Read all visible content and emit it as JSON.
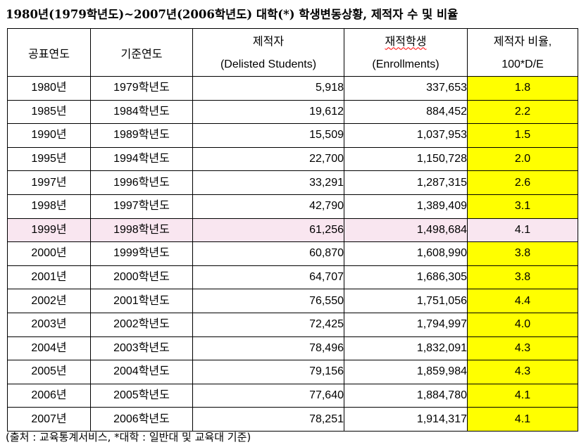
{
  "title": "1980년(1979학년도)~2007년(2006학년도) 대학(*) 학생변동상황, 제적자 수 및 비율",
  "headers": {
    "announce_year": "공표연도",
    "base_year": "기준연도",
    "delisted_ko": "제적자",
    "delisted_en": "(Delisted Students)",
    "enrolled_ko": "재적학생",
    "enrolled_en": "(Enrollments)",
    "ratio_ko": "제적자 비율,",
    "ratio_formula": "100*D/E"
  },
  "highlight_row_color": "#f9e6f0",
  "ratio_cell_color": "#ffff00",
  "rows": [
    {
      "year": "1980년",
      "base": "1979학년도",
      "delisted": "5,918",
      "enrolled": "337,653",
      "ratio": "1.8"
    },
    {
      "year": "1985년",
      "base": "1984학년도",
      "delisted": "19,612",
      "enrolled": "884,452",
      "ratio": "2.2"
    },
    {
      "year": "1990년",
      "base": "1989학년도",
      "delisted": "15,509",
      "enrolled": "1,037,953",
      "ratio": "1.5"
    },
    {
      "year": "1995년",
      "base": "1994학년도",
      "delisted": "22,700",
      "enrolled": "1,150,728",
      "ratio": "2.0"
    },
    {
      "year": "1997년",
      "base": "1996학년도",
      "delisted": "33,291",
      "enrolled": "1,287,315",
      "ratio": "2.6"
    },
    {
      "year": "1998년",
      "base": "1997학년도",
      "delisted": "42,790",
      "enrolled": "1,389,409",
      "ratio": "3.1"
    },
    {
      "year": "1999년",
      "base": "1998학년도",
      "delisted": "61,256",
      "enrolled": "1,498,684",
      "ratio": "4.1"
    },
    {
      "year": "2000년",
      "base": "1999학년도",
      "delisted": "60,870",
      "enrolled": "1,608,990",
      "ratio": "3.8"
    },
    {
      "year": "2001년",
      "base": "2000학년도",
      "delisted": "64,707",
      "enrolled": "1,686,305",
      "ratio": "3.8"
    },
    {
      "year": "2002년",
      "base": "2001학년도",
      "delisted": "76,550",
      "enrolled": "1,751,056",
      "ratio": "4.4"
    },
    {
      "year": "2003년",
      "base": "2002학년도",
      "delisted": "72,425",
      "enrolled": "1,794,997",
      "ratio": "4.0"
    },
    {
      "year": "2004년",
      "base": "2003학년도",
      "delisted": "78,496",
      "enrolled": "1,832,091",
      "ratio": "4.3"
    },
    {
      "year": "2005년",
      "base": "2004학년도",
      "delisted": "79,156",
      "enrolled": "1,859,984",
      "ratio": "4.3"
    },
    {
      "year": "2006년",
      "base": "2005학년도",
      "delisted": "77,640",
      "enrolled": "1,884,780",
      "ratio": "4.1"
    },
    {
      "year": "2007년",
      "base": "2006학년도",
      "delisted": "78,251",
      "enrolled": "1,914,317",
      "ratio": "4.1"
    }
  ],
  "footnote": "(출처 : 교육통계서비스, *대학 : 일반대 및 교육대 기준)"
}
